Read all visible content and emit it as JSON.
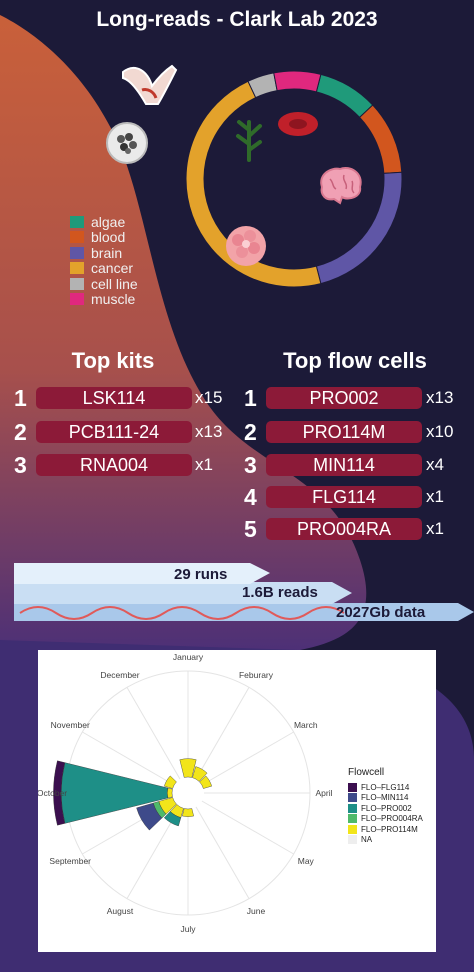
{
  "title": "Long-reads - Clark Lab 2023",
  "donut": {
    "legend": [
      {
        "label": "algae",
        "color": "#1f9a7a"
      },
      {
        "label": "blood",
        "color": "#d2561e"
      },
      {
        "label": "brain",
        "color": "#5f56a6"
      },
      {
        "label": "cancer",
        "color": "#e3a22b"
      },
      {
        "label": "cell line",
        "color": "#b3b3b3"
      },
      {
        "label": "muscle",
        "color": "#e0287e"
      }
    ],
    "segments": [
      {
        "label": "algae",
        "value": 9,
        "color": "#1f9a7a"
      },
      {
        "label": "blood",
        "value": 11,
        "color": "#d2561e"
      },
      {
        "label": "brain",
        "value": 22,
        "color": "#5f56a6"
      },
      {
        "label": "cancer",
        "value": 47,
        "color": "#e3a22b"
      },
      {
        "label": "cell line",
        "value": 4,
        "color": "#b3b3b3"
      },
      {
        "label": "muscle",
        "value": 7,
        "color": "#e0287e"
      }
    ]
  },
  "kits": {
    "title": "Top kits",
    "items": [
      {
        "rank": "1",
        "name": "LSK114",
        "count": "x15"
      },
      {
        "rank": "2",
        "name": "PCB111-24",
        "count": "x13"
      },
      {
        "rank": "3",
        "name": "RNA004",
        "count": "x1"
      }
    ]
  },
  "flowcells": {
    "title": "Top flow cells",
    "items": [
      {
        "rank": "1",
        "name": "PRO002",
        "count": "x13"
      },
      {
        "rank": "2",
        "name": "PRO114M",
        "count": "x10"
      },
      {
        "rank": "3",
        "name": "MIN114",
        "count": "x4"
      },
      {
        "rank": "4",
        "name": "FLG114",
        "count": "x1"
      },
      {
        "rank": "5",
        "name": "PRO004RA",
        "count": "x1"
      }
    ]
  },
  "stats": {
    "runs": "29 runs",
    "reads": "1.6B reads",
    "data": "2027Gb data"
  },
  "chart_data": {
    "type": "bar",
    "subtype": "polar-stacked",
    "categories": [
      "January",
      "Feburary",
      "March",
      "April",
      "May",
      "June",
      "July",
      "August",
      "September",
      "October",
      "November",
      "December"
    ],
    "legend_title": "Flowcell",
    "legend_position": "right",
    "series": [
      {
        "name": "FLO–FLG114",
        "color": "#3b0f4f",
        "values": [
          0,
          0,
          0,
          0,
          0,
          0,
          0,
          0,
          0,
          0.8,
          0,
          0
        ]
      },
      {
        "name": "FLO–MIN114",
        "color": "#3e4a8a",
        "values": [
          0,
          0,
          0,
          0,
          0,
          0,
          0,
          0,
          1.8,
          0,
          0,
          0
        ]
      },
      {
        "name": "FLO–PRO002",
        "color": "#1e8f87",
        "values": [
          0,
          0,
          0,
          0,
          0,
          0,
          0,
          0.9,
          0,
          11,
          0,
          0
        ]
      },
      {
        "name": "FLO–PRO004RA",
        "color": "#4fba6a",
        "values": [
          0,
          0,
          0,
          0,
          0,
          0,
          0,
          0,
          0.6,
          0,
          0,
          0
        ]
      },
      {
        "name": "FLO–PRO114M",
        "color": "#f2e51a",
        "values": [
          1.9,
          1.2,
          0.9,
          0,
          0,
          0,
          0.8,
          1.0,
          1.5,
          0.5,
          0.9,
          0
        ]
      },
      {
        "name": "NA",
        "color": "#eeeeee",
        "values": [
          0,
          0,
          0,
          0,
          0,
          0,
          0,
          0,
          0,
          0,
          0,
          0
        ]
      }
    ],
    "grid": true
  }
}
